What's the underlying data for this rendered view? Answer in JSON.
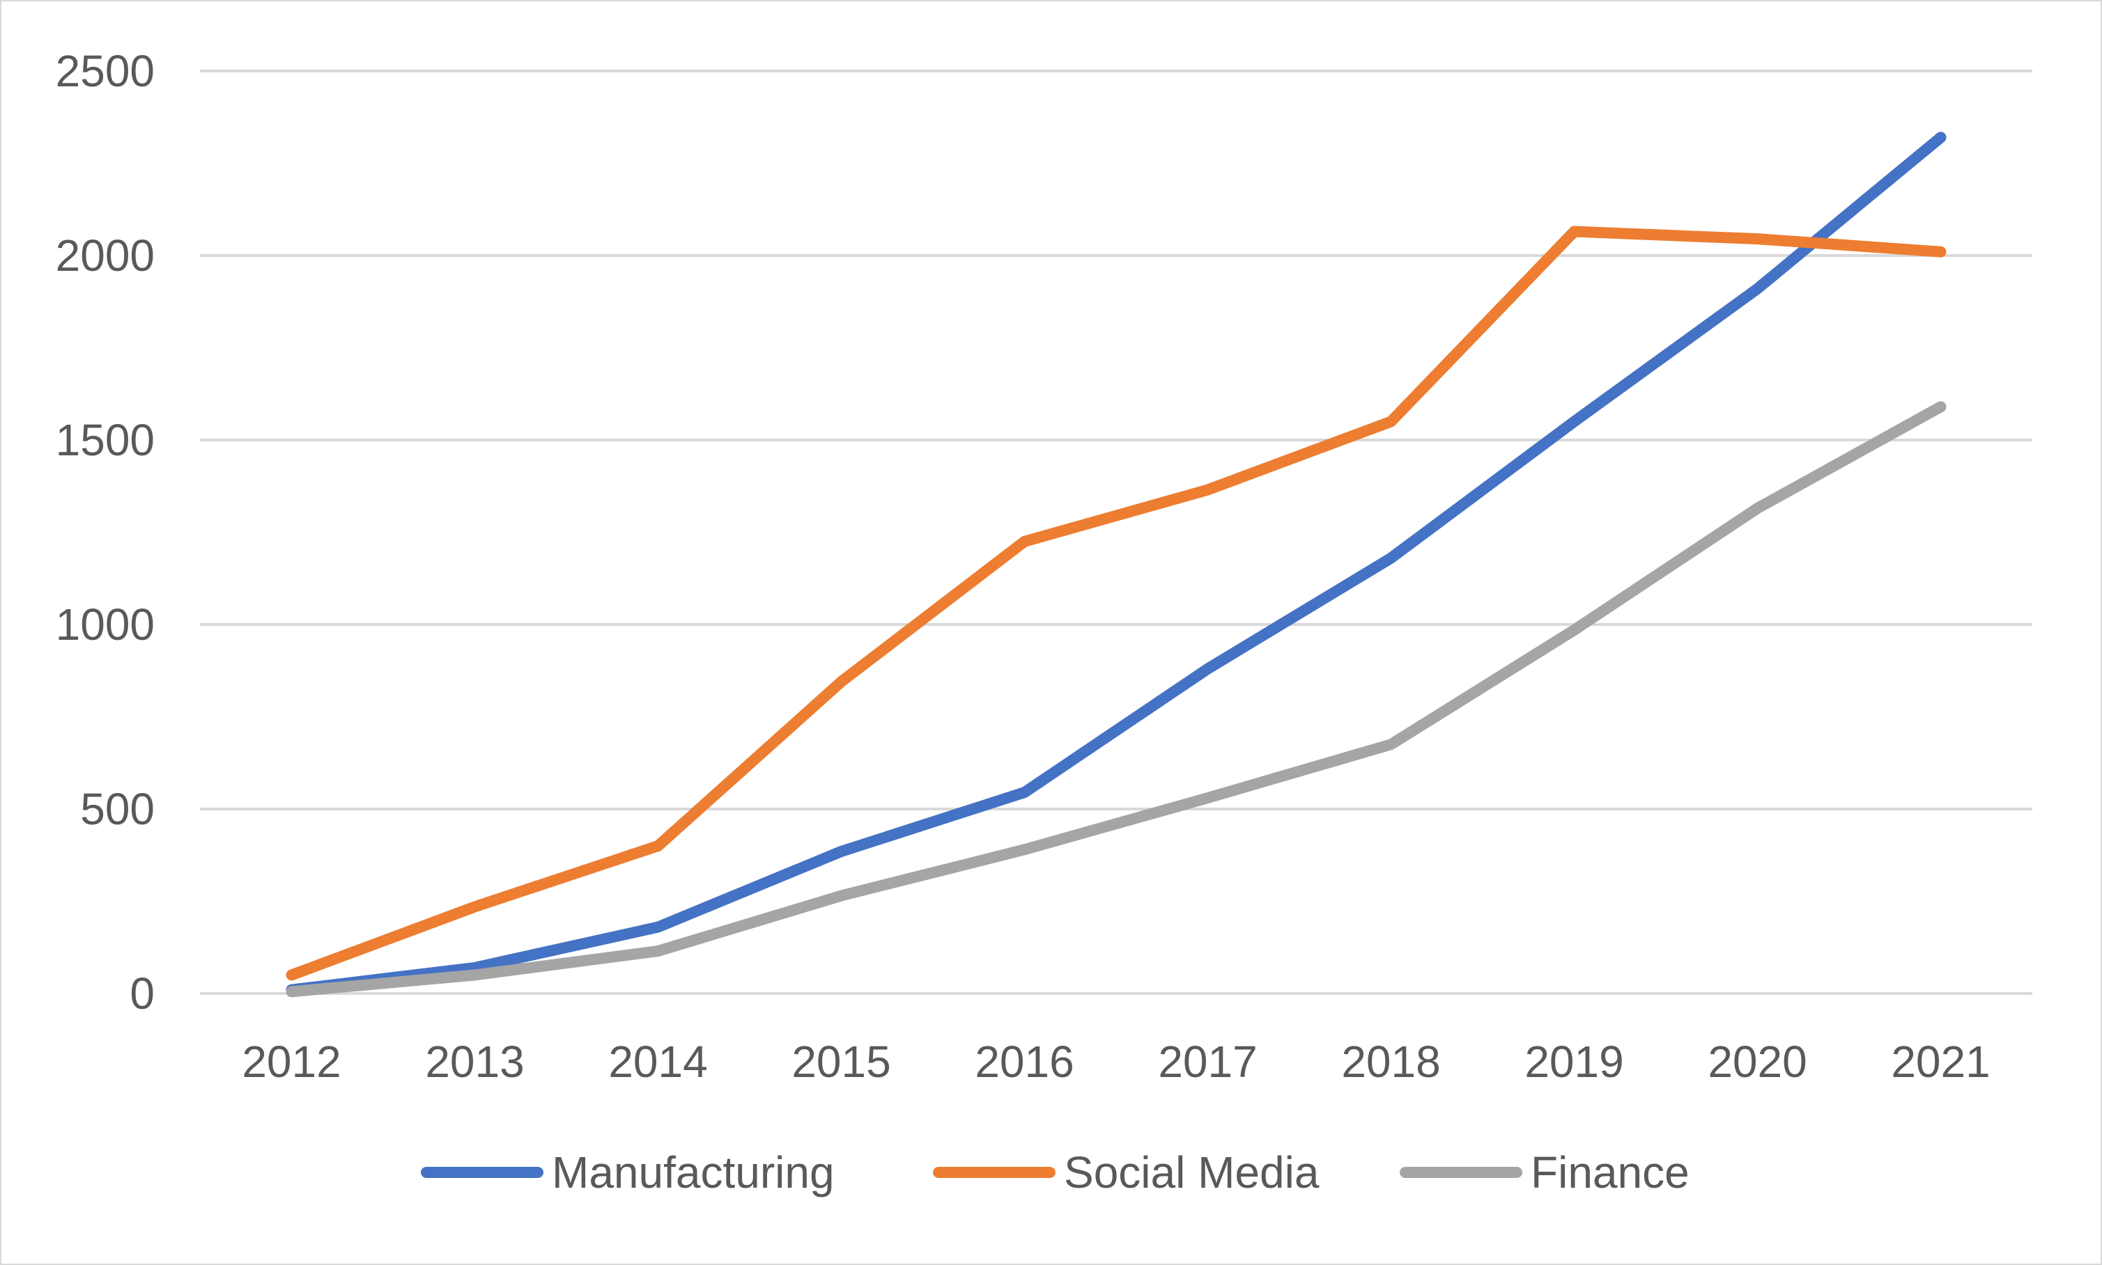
{
  "chart_data": {
    "type": "line",
    "title": "",
    "xlabel": "",
    "ylabel": "",
    "categories": [
      "2012",
      "2013",
      "2014",
      "2015",
      "2016",
      "2017",
      "2018",
      "2019",
      "2020",
      "2021"
    ],
    "ylim": [
      0,
      2500
    ],
    "yticks": [
      0,
      500,
      1000,
      1500,
      2000,
      2500
    ],
    "grid": true,
    "legend_position": "bottom",
    "series": [
      {
        "name": "Manufacturing",
        "color": "#4472c4",
        "values": [
          10,
          70,
          180,
          385,
          545,
          880,
          1180,
          1550,
          1910,
          2320
        ]
      },
      {
        "name": "Social Media",
        "color": "#ed7d31",
        "values": [
          50,
          235,
          400,
          845,
          1225,
          1365,
          1550,
          2065,
          2045,
          2010
        ]
      },
      {
        "name": "Finance",
        "color": "#a5a5a5",
        "values": [
          5,
          50,
          115,
          265,
          390,
          530,
          675,
          985,
          1315,
          1590
        ]
      }
    ]
  },
  "colors": {
    "grid": "#d9d9d9",
    "text": "#595959",
    "border": "#d9d9d9"
  }
}
